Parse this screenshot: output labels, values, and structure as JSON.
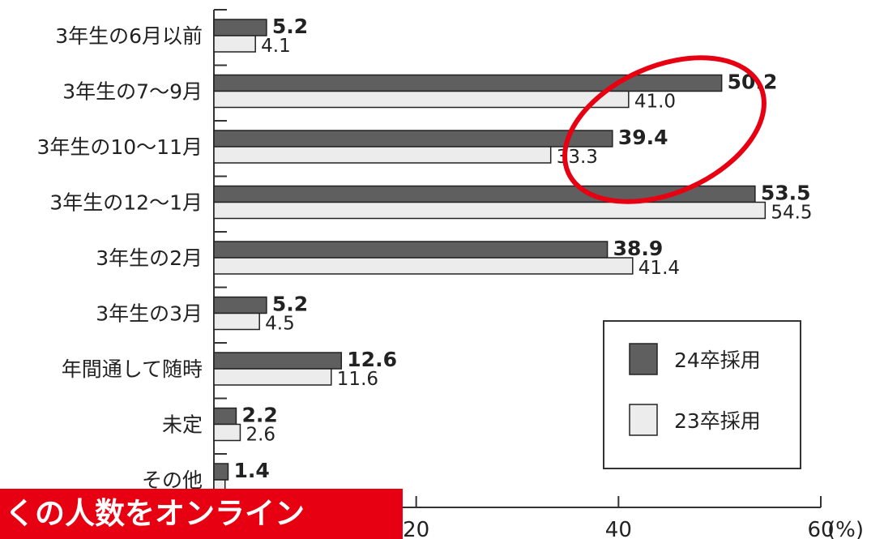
{
  "chart_data": {
    "type": "bar",
    "orientation": "horizontal",
    "categories": [
      "3年生の6月以前",
      "3年生の7～9月",
      "3年生の10～11月",
      "3年生の12～1月",
      "3年生の2月",
      "3年生の3月",
      "年間通して随時",
      "未定",
      "その他"
    ],
    "series": [
      {
        "name": "24卒採用",
        "color": "#5f5f5f",
        "values": [
          5.2,
          50.2,
          39.4,
          53.5,
          38.9,
          5.2,
          12.6,
          2.2,
          1.4
        ]
      },
      {
        "name": "23卒採用",
        "color": "#ececec",
        "values": [
          4.1,
          41.0,
          33.3,
          54.5,
          41.4,
          4.5,
          11.6,
          2.6,
          1.1
        ]
      }
    ],
    "value_labels_a": [
      "5.2",
      "50.2",
      "39.4",
      "53.5",
      "38.9",
      "5.2",
      "12.6",
      "2.2",
      "1.4"
    ],
    "value_labels_b": [
      "4.1",
      "41.0",
      "33.3",
      "54.5",
      "41.4",
      "4.5",
      "11.6",
      "2.6",
      ""
    ],
    "xticks": [
      20,
      40,
      60
    ],
    "xtick_labels": [
      "20",
      "40",
      "60"
    ],
    "xunit": "(%)",
    "xlim": [
      0,
      60
    ],
    "legend_position": "bottom-right",
    "highlight": {
      "categories": [
        "3年生の7～9月",
        "3年生の10～11月"
      ],
      "color": "#e60012"
    }
  },
  "banner": {
    "text": "くの人数をオンライン",
    "color": "#e60012"
  }
}
